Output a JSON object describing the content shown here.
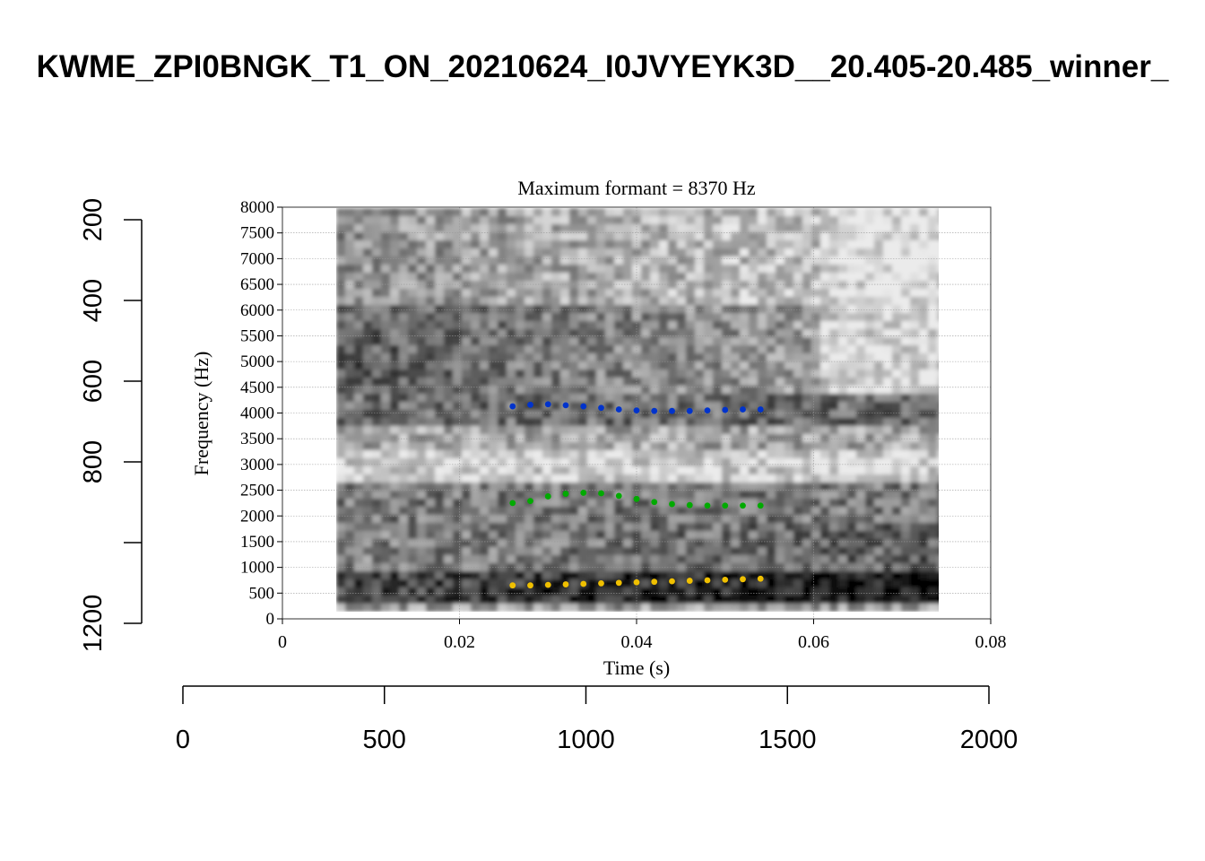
{
  "title": "KWME_ZPI0BNGK_T1_ON_20210624_I0JVYEYK3D__20.405-20.485_winner_",
  "outer_axes": {
    "x_ticks": [
      "0",
      "500",
      "1000",
      "1500",
      "2000"
    ],
    "y_ticks": [
      "200",
      "400",
      "600",
      "800",
      "1000",
      "1200"
    ],
    "y_tick_labels_shown": [
      "200",
      "400",
      "600",
      "800",
      "",
      "1200"
    ]
  },
  "chart_data": {
    "type": "scatter",
    "title": "Maximum formant  =  8370 Hz",
    "xlabel": "Time (s)",
    "ylabel": "Frequency (Hz)",
    "xlim": [
      0,
      0.08
    ],
    "ylim": [
      0,
      8000
    ],
    "x_ticks": [
      "0",
      "0.02",
      "0.04",
      "0.06",
      "0.08"
    ],
    "y_ticks": [
      "0",
      "500",
      "1000",
      "1500",
      "2000",
      "2500",
      "3000",
      "3500",
      "4000",
      "4500",
      "5000",
      "5500",
      "6000",
      "6500",
      "7000",
      "7500",
      "8000"
    ],
    "grid": true,
    "background": "spectrogram",
    "x": [
      0.026,
      0.028,
      0.03,
      0.032,
      0.034,
      0.036,
      0.038,
      0.04,
      0.042,
      0.044,
      0.046,
      0.048,
      0.05,
      0.052,
      0.054
    ],
    "series": [
      {
        "color": "#0033cc",
        "values": [
          4130,
          4160,
          4170,
          4150,
          4130,
          4100,
          4070,
          4050,
          4040,
          4040,
          4040,
          4050,
          4060,
          4070,
          4070
        ]
      },
      {
        "color": "#00aa00",
        "values": [
          2250,
          2290,
          2380,
          2430,
          2450,
          2440,
          2390,
          2330,
          2270,
          2230,
          2210,
          2200,
          2200,
          2200,
          2200
        ]
      },
      {
        "color": "#f0c000",
        "values": [
          650,
          650,
          660,
          670,
          680,
          690,
          700,
          710,
          720,
          730,
          740,
          750,
          760,
          770,
          780
        ]
      }
    ]
  }
}
